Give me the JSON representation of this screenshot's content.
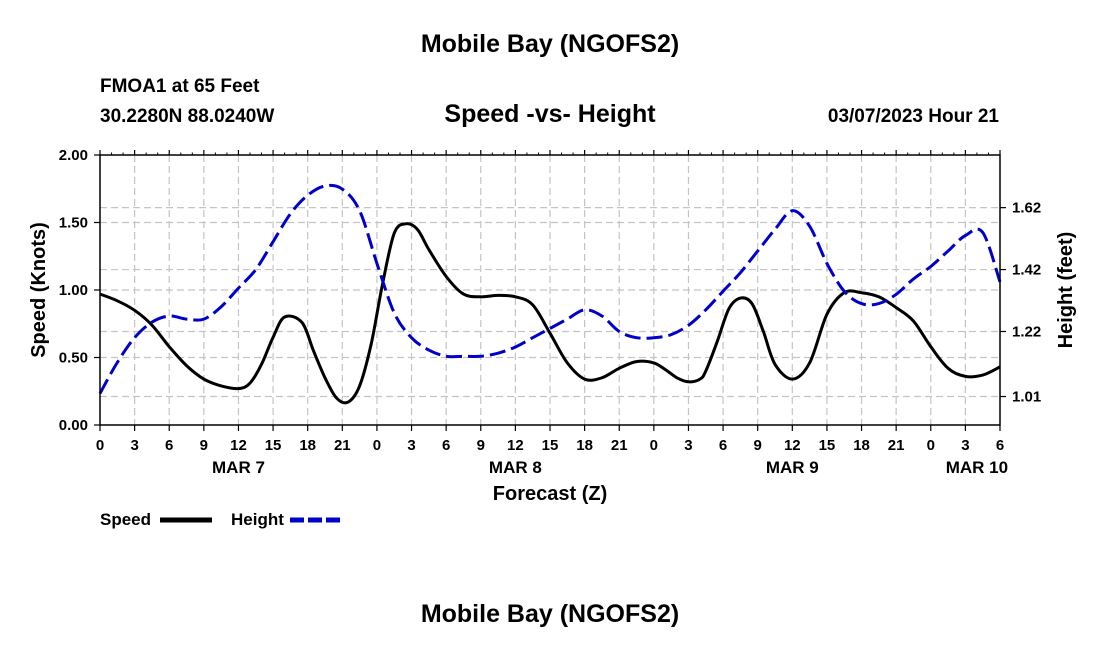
{
  "header": {
    "title": "Mobile Bay (NGOFS2)",
    "station": "FMOA1 at 65 Feet",
    "coordinates": "30.2280N  88.0240W",
    "subtitle": "Speed -vs- Height",
    "datetime": "03/07/2023 Hour 21"
  },
  "footer": {
    "title": "Mobile Bay (NGOFS2)"
  },
  "chart_data": {
    "type": "line",
    "title": "Speed -vs- Height",
    "xlabel": "Forecast (Z)",
    "ylabel": "Speed (Knots)",
    "y2label": "Height (feet)",
    "xlim": [
      0,
      78
    ],
    "ylim": [
      0,
      2.0
    ],
    "y2lim": [
      0.918,
      1.79
    ],
    "grid": true,
    "x_ticks": [
      0,
      3,
      6,
      9,
      12,
      15,
      18,
      21,
      24,
      27,
      30,
      33,
      36,
      39,
      42,
      45,
      48,
      51,
      54,
      57,
      60,
      63,
      66,
      69,
      72,
      75,
      78
    ],
    "x_tick_labels": [
      "0",
      "3",
      "6",
      "9",
      "12",
      "15",
      "18",
      "21",
      "0",
      "3",
      "6",
      "9",
      "12",
      "15",
      "18",
      "21",
      "0",
      "3",
      "6",
      "9",
      "12",
      "15",
      "18",
      "21",
      "0",
      "3",
      "6"
    ],
    "y_ticks": [
      0,
      0.5,
      1.0,
      1.5,
      2.0
    ],
    "y_tick_labels": [
      "0.00",
      "0.50",
      "1.00",
      "1.50",
      "2.00"
    ],
    "y2_ticks": [
      1.01,
      1.22,
      1.42,
      1.62
    ],
    "y2_tick_labels": [
      "1.01",
      "1.22",
      "1.42",
      "1.62"
    ],
    "date_labels": [
      {
        "x": 12,
        "label": "MAR 7"
      },
      {
        "x": 36,
        "label": "MAR 8"
      },
      {
        "x": 60,
        "label": "MAR 9"
      },
      {
        "x": 76,
        "label": "MAR 10"
      }
    ],
    "legend": {
      "placement": "bottom-left",
      "entries": [
        {
          "label": "Speed",
          "color": "#000000",
          "style": "solid"
        },
        {
          "label": "Height",
          "color": "#0000cc",
          "style": "dashed"
        }
      ]
    },
    "series": [
      {
        "name": "Speed",
        "axis": "left",
        "color": "#000000",
        "style": "solid",
        "x": [
          0,
          1.5,
          3,
          4.5,
          6,
          7.5,
          9,
          10.5,
          12,
          13,
          14,
          15,
          16,
          17.5,
          18.5,
          19.5,
          20.5,
          21.5,
          22.5,
          23.5,
          24.5,
          25.5,
          26.5,
          27.5,
          28.5,
          30,
          31.5,
          33,
          34.5,
          36,
          37.5,
          39,
          40.5,
          42,
          43.5,
          45,
          46.5,
          48,
          49,
          50,
          51,
          52,
          52.5,
          53.5,
          54.5,
          55.5,
          56.5,
          57.5,
          58.5,
          60,
          61.5,
          63,
          64.5,
          66,
          67.5,
          69,
          70.5,
          72,
          73.5,
          75,
          76.5,
          78
        ],
        "values": [
          0.97,
          0.92,
          0.85,
          0.74,
          0.58,
          0.44,
          0.34,
          0.29,
          0.27,
          0.31,
          0.45,
          0.65,
          0.8,
          0.76,
          0.55,
          0.35,
          0.2,
          0.17,
          0.29,
          0.6,
          1.05,
          1.42,
          1.49,
          1.45,
          1.3,
          1.1,
          0.97,
          0.95,
          0.96,
          0.95,
          0.89,
          0.68,
          0.46,
          0.34,
          0.35,
          0.42,
          0.47,
          0.46,
          0.41,
          0.35,
          0.32,
          0.34,
          0.4,
          0.62,
          0.86,
          0.94,
          0.9,
          0.69,
          0.45,
          0.34,
          0.46,
          0.82,
          0.98,
          0.98,
          0.95,
          0.87,
          0.77,
          0.58,
          0.42,
          0.36,
          0.37,
          0.43
        ]
      },
      {
        "name": "Height",
        "axis": "right",
        "color": "#0000cc",
        "style": "dashed",
        "x": [
          0,
          1.5,
          3,
          4.5,
          6,
          7.5,
          9,
          10.5,
          12,
          13.5,
          15,
          16.5,
          18,
          19.5,
          21,
          22.5,
          24,
          25.5,
          27,
          28.5,
          30,
          31.5,
          33,
          34.5,
          36,
          37.5,
          39,
          40.5,
          42,
          43.5,
          45,
          46.5,
          48,
          49.5,
          51,
          52.5,
          54,
          55.5,
          57,
          58.5,
          60,
          61.5,
          63,
          64.5,
          66,
          67.5,
          69,
          70.5,
          72,
          73.5,
          75,
          76.5,
          78
        ],
        "values": [
          1.02,
          1.12,
          1.2,
          1.25,
          1.27,
          1.26,
          1.26,
          1.3,
          1.36,
          1.42,
          1.51,
          1.6,
          1.66,
          1.69,
          1.68,
          1.61,
          1.44,
          1.28,
          1.2,
          1.16,
          1.14,
          1.14,
          1.14,
          1.15,
          1.17,
          1.2,
          1.23,
          1.26,
          1.29,
          1.27,
          1.22,
          1.2,
          1.2,
          1.21,
          1.24,
          1.29,
          1.35,
          1.41,
          1.48,
          1.55,
          1.61,
          1.56,
          1.44,
          1.35,
          1.31,
          1.31,
          1.34,
          1.39,
          1.43,
          1.48,
          1.53,
          1.54,
          1.38
        ]
      }
    ]
  }
}
